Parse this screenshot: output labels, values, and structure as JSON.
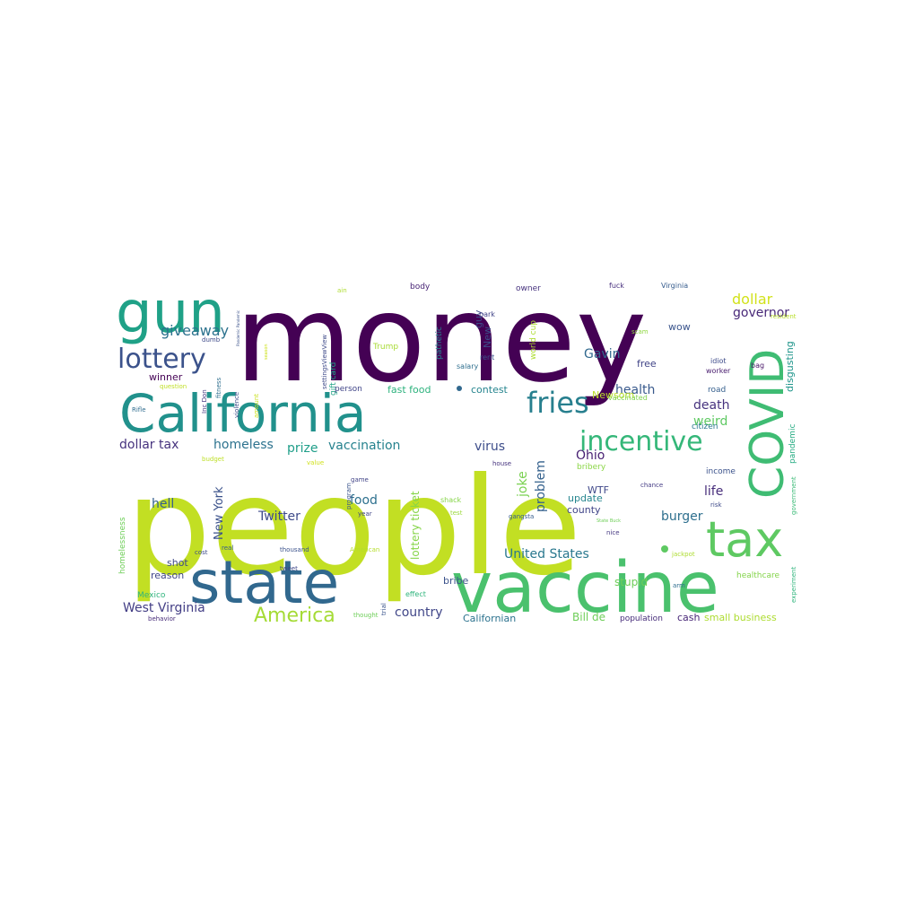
{
  "words": [
    {
      "text": "money",
      "color": "#440154"
    },
    {
      "text": "people",
      "color": "#c2df23"
    },
    {
      "text": "California",
      "color": "#21918c"
    },
    {
      "text": "vaccine",
      "color": "#4ac16d"
    },
    {
      "text": "state",
      "color": "#31688e"
    },
    {
      "text": "gun",
      "color": "#1fa187"
    },
    {
      "text": "COVID",
      "color": "#3fbc73"
    },
    {
      "text": "tax",
      "color": "#5ec962"
    },
    {
      "text": "lottery",
      "color": "#3b528b"
    },
    {
      "text": "incentive",
      "color": "#35b779"
    },
    {
      "text": "fries",
      "color": "#277f8e"
    },
    {
      "text": "America",
      "color": "#a5db36"
    },
    {
      "text": "giveaway",
      "color": "#2c728e"
    },
    {
      "text": "dollar",
      "color": "#d2e21b"
    },
    {
      "text": "governor",
      "color": "#482878"
    },
    {
      "text": "Gavin",
      "color": "#31688e"
    },
    {
      "text": "health",
      "color": "#38598c"
    },
    {
      "text": "United States",
      "color": "#2a788e"
    },
    {
      "text": "vaccination",
      "color": "#26828e"
    },
    {
      "text": "prize",
      "color": "#1f9e89"
    },
    {
      "text": "homeless",
      "color": "#2c728e"
    },
    {
      "text": "dollar tax",
      "color": "#46337e"
    },
    {
      "text": "Twitter",
      "color": "#3e4a89"
    },
    {
      "text": "food",
      "color": "#2d708e"
    },
    {
      "text": "hell",
      "color": "#355f8d"
    },
    {
      "text": "West Virginia",
      "color": "#433e85"
    },
    {
      "text": "country",
      "color": "#404688"
    },
    {
      "text": "joke",
      "color": "#7ad151"
    },
    {
      "text": "problem",
      "color": "#34618d"
    },
    {
      "text": "Ohio",
      "color": "#482173"
    },
    {
      "text": "virus",
      "color": "#3d4d8a"
    },
    {
      "text": "death",
      "color": "#46327e"
    },
    {
      "text": "life",
      "color": "#472d7b"
    },
    {
      "text": "burger",
      "color": "#2e6f8e"
    },
    {
      "text": "weird",
      "color": "#5ec962"
    },
    {
      "text": "New York",
      "color": "#3b528b"
    },
    {
      "text": "lottery ticket",
      "color": "#86d549"
    },
    {
      "text": "stupid",
      "color": "#6ece58"
    },
    {
      "text": "Bill de",
      "color": "#6ece58"
    },
    {
      "text": "small business",
      "color": "#addc30"
    },
    {
      "text": "cash",
      "color": "#482677"
    },
    {
      "text": "population",
      "color": "#472c7a"
    },
    {
      "text": "Californian",
      "color": "#2c728e"
    },
    {
      "text": "bribe",
      "color": "#3b528b"
    },
    {
      "text": "reason",
      "color": "#404688"
    },
    {
      "text": "shot",
      "color": "#3e4989"
    },
    {
      "text": "winner",
      "color": "#440154"
    },
    {
      "text": "wow",
      "color": "#3a548c"
    },
    {
      "text": "disgusting",
      "color": "#1f958b"
    },
    {
      "text": "pandemic",
      "color": "#25ab82"
    },
    {
      "text": "WTF",
      "color": "#3f4889"
    },
    {
      "text": "update",
      "color": "#25858e"
    },
    {
      "text": "county",
      "color": "#404588"
    },
    {
      "text": "Newsom",
      "color": "#bade28"
    },
    {
      "text": "free",
      "color": "#414487"
    },
    {
      "text": "road",
      "color": "#355f8d"
    },
    {
      "text": "citizen",
      "color": "#2a778e"
    },
    {
      "text": "income",
      "color": "#3b528b"
    },
    {
      "text": "bribery",
      "color": "#8bd646"
    },
    {
      "text": "fast food",
      "color": "#2db27d"
    },
    {
      "text": "contest",
      "color": "#25848e"
    },
    {
      "text": "New",
      "color": "#3d4e8a"
    },
    {
      "text": "guy",
      "color": "#3e4a89"
    },
    {
      "text": "Mexico",
      "color": "#2fb47c"
    },
    {
      "text": "homelessness",
      "color": "#6ece58"
    },
    {
      "text": "healthcare",
      "color": "#84d44b"
    },
    {
      "text": "body",
      "color": "#482475"
    },
    {
      "text": "owner",
      "color": "#46327e"
    },
    {
      "text": "fuck",
      "color": "#472f7d"
    },
    {
      "text": "Virginia",
      "color": "#365c8d"
    },
    {
      "text": "idiot",
      "color": "#3e4c8a"
    },
    {
      "text": "worker",
      "color": "#481c6e"
    },
    {
      "text": "bag",
      "color": "#481668"
    },
    {
      "text": "resident",
      "color": "#b8de29"
    },
    {
      "text": "pathetic",
      "color": "#25858e"
    },
    {
      "text": "world cup",
      "color": "#addc30"
    },
    {
      "text": "gift card",
      "color": "#20a386"
    },
    {
      "text": "settingsViewView",
      "color": "#3e4a89"
    },
    {
      "text": "Trump",
      "color": "#a8db34"
    },
    {
      "text": "park",
      "color": "#414487"
    },
    {
      "text": "rent",
      "color": "#3b528b"
    },
    {
      "text": "salary",
      "color": "#2e6e8e"
    },
    {
      "text": "scam",
      "color": "#90d743"
    },
    {
      "text": "person",
      "color": "#404588"
    },
    {
      "text": "vaccinated",
      "color": "#7fd34e"
    },
    {
      "text": "dumb",
      "color": "#3e4989"
    },
    {
      "text": "question",
      "color": "#c0df25"
    },
    {
      "text": "Rifle",
      "color": "#2f6c8e"
    },
    {
      "text": "fitness",
      "color": "#2e6e8e"
    },
    {
      "text": "violence",
      "color": "#3d4e8a"
    },
    {
      "text": "Inc Don",
      "color": "#453882"
    },
    {
      "text": "amount",
      "color": "#cae11f"
    },
    {
      "text": "budget",
      "color": "#bddf26"
    },
    {
      "text": "value",
      "color": "#d0e11c"
    },
    {
      "text": "game",
      "color": "#414487"
    },
    {
      "text": "program",
      "color": "#3a548c"
    },
    {
      "text": "house",
      "color": "#46337e"
    },
    {
      "text": "shack",
      "color": "#86d549"
    },
    {
      "text": "test",
      "color": "#9bd93c"
    },
    {
      "text": "year",
      "color": "#3f4788"
    },
    {
      "text": "gangsta",
      "color": "#365d8d"
    },
    {
      "text": "chance",
      "color": "#443b84"
    },
    {
      "text": "risk",
      "color": "#3e4a89"
    },
    {
      "text": "nice",
      "color": "#453781"
    },
    {
      "text": "State Buck",
      "color": "#6ece58"
    },
    {
      "text": "jackpot",
      "color": "#addc30"
    },
    {
      "text": "government",
      "color": "#3aba76"
    },
    {
      "text": "experiment",
      "color": "#2fb47c"
    },
    {
      "text": "cost",
      "color": "#3e4c8a"
    },
    {
      "text": "real",
      "color": "#365c8d"
    },
    {
      "text": "thousand",
      "color": "#3b528b"
    },
    {
      "text": "tweet",
      "color": "#3f4889"
    },
    {
      "text": "American",
      "color": "#b5de2b"
    },
    {
      "text": "effect",
      "color": "#2fb47c"
    },
    {
      "text": "trial",
      "color": "#3a548c"
    },
    {
      "text": "arm",
      "color": "#2e6e8e"
    },
    {
      "text": "behavior",
      "color": "#472c7a"
    },
    {
      "text": "thought",
      "color": "#6ece58"
    },
    {
      "text": "ain",
      "color": "#addc30"
    },
    {
      "text": "Pandemic Pandemic",
      "color": "#3b528b"
    },
    {
      "text": "season",
      "color": "#cde11d"
    }
  ]
}
